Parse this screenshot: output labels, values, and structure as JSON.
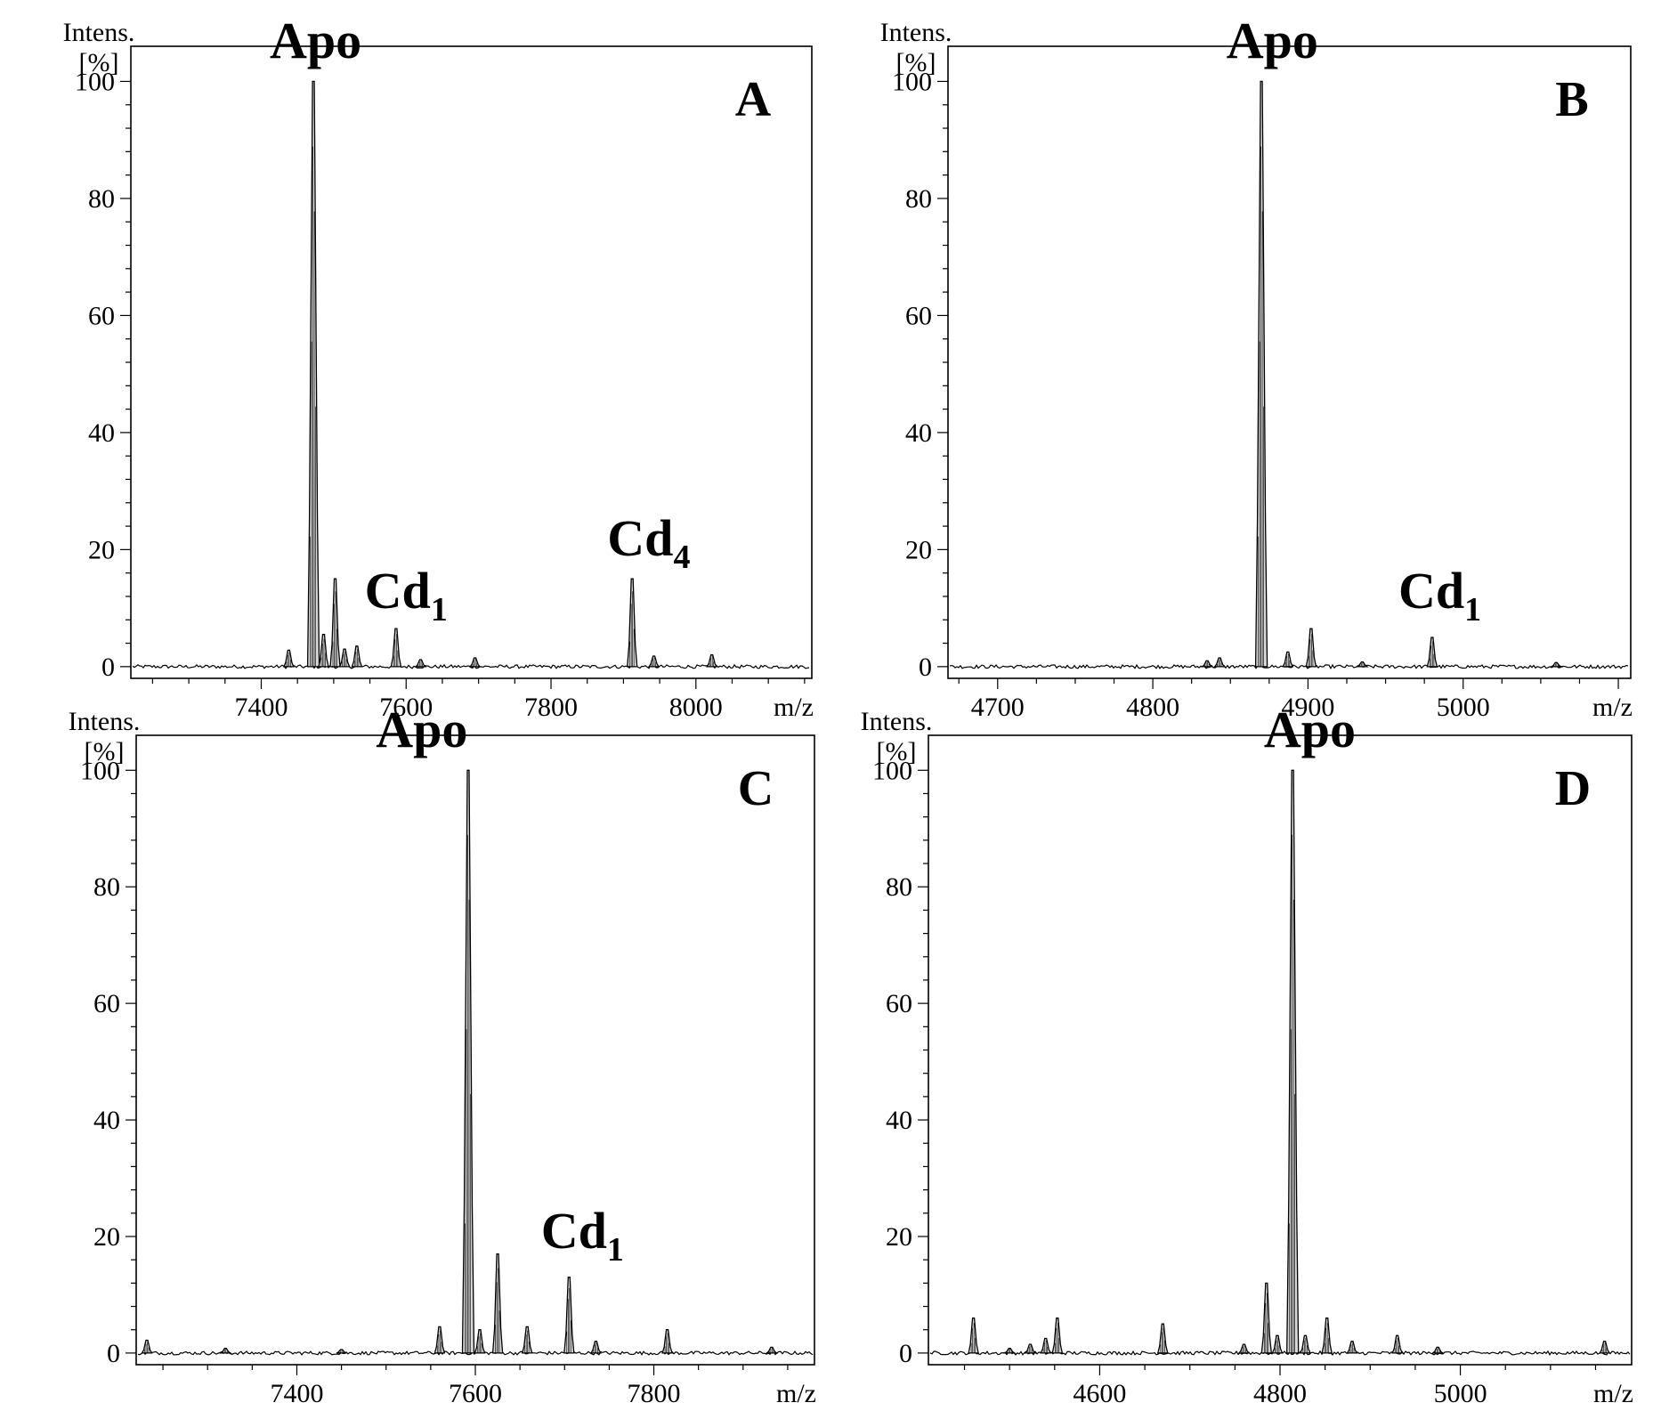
{
  "chart_data": [
    {
      "type": "line",
      "panel_label": "A",
      "ylabel": [
        "Intens.",
        "[%]"
      ],
      "xunit": "m/z",
      "xlim": [
        7220,
        8160
      ],
      "ylim": [
        -2,
        106
      ],
      "xticks": [
        7400,
        7600,
        7800,
        8000
      ],
      "yticks": [
        0,
        20,
        40,
        60,
        80,
        100
      ],
      "annotations": [
        {
          "text": "Apo",
          "sub": "",
          "x": 7475,
          "y": 104
        },
        {
          "text": "Cd",
          "sub": "1",
          "x": 7600,
          "y": 10
        },
        {
          "text": "Cd",
          "sub": "4",
          "x": 7935,
          "y": 19
        }
      ],
      "baseline": 0,
      "peaks": [
        {
          "x": 7438,
          "y": 2.8
        },
        {
          "x": 7472,
          "y": 100
        },
        {
          "x": 7486,
          "y": 5.5
        },
        {
          "x": 7502,
          "y": 15
        },
        {
          "x": 7515,
          "y": 3
        },
        {
          "x": 7532,
          "y": 3.5
        },
        {
          "x": 7586,
          "y": 6.5
        },
        {
          "x": 7620,
          "y": 1.2
        },
        {
          "x": 7695,
          "y": 1.5
        },
        {
          "x": 7912,
          "y": 15
        },
        {
          "x": 7942,
          "y": 1.8
        },
        {
          "x": 8022,
          "y": 2
        }
      ]
    },
    {
      "type": "line",
      "panel_label": "B",
      "ylabel": [
        "Intens.",
        "[%]"
      ],
      "xunit": "m/z",
      "xlim": [
        4668,
        5108
      ],
      "ylim": [
        -2,
        106
      ],
      "xticks": [
        4700,
        4800,
        4900,
        5000
      ],
      "yticks": [
        0,
        20,
        40,
        60,
        80,
        100
      ],
      "annotations": [
        {
          "text": "Apo",
          "sub": "",
          "x": 4877,
          "y": 104
        },
        {
          "text": "Cd",
          "sub": "1",
          "x": 4985,
          "y": 10
        }
      ],
      "baseline": 0,
      "peaks": [
        {
          "x": 4835,
          "y": 1
        },
        {
          "x": 4843,
          "y": 1.5
        },
        {
          "x": 4870,
          "y": 100
        },
        {
          "x": 4887,
          "y": 2.5
        },
        {
          "x": 4902,
          "y": 6.5
        },
        {
          "x": 4935,
          "y": 0.8
        },
        {
          "x": 4980,
          "y": 5
        },
        {
          "x": 5060,
          "y": 0.7
        }
      ]
    },
    {
      "type": "line",
      "panel_label": "C",
      "ylabel": [
        "Intens.",
        "[%]"
      ],
      "xunit": "m/z",
      "xlim": [
        7220,
        7980
      ],
      "ylim": [
        -2,
        106
      ],
      "xticks": [
        7400,
        7600,
        7800
      ],
      "yticks": [
        0,
        20,
        40,
        60,
        80,
        100
      ],
      "annotations": [
        {
          "text": "Apo",
          "sub": "",
          "x": 7540,
          "y": 104
        },
        {
          "text": "Cd",
          "sub": "1",
          "x": 7720,
          "y": 18
        }
      ],
      "baseline": 0,
      "peaks": [
        {
          "x": 7232,
          "y": 2.2
        },
        {
          "x": 7320,
          "y": 0.8
        },
        {
          "x": 7450,
          "y": 0.6
        },
        {
          "x": 7560,
          "y": 4.5
        },
        {
          "x": 7592,
          "y": 100
        },
        {
          "x": 7605,
          "y": 4
        },
        {
          "x": 7625,
          "y": 17
        },
        {
          "x": 7658,
          "y": 4.5
        },
        {
          "x": 7705,
          "y": 13
        },
        {
          "x": 7735,
          "y": 2
        },
        {
          "x": 7815,
          "y": 4
        },
        {
          "x": 7932,
          "y": 1
        }
      ]
    },
    {
      "type": "line",
      "panel_label": "D",
      "ylabel": [
        "Intens.",
        "[%]"
      ],
      "xunit": "m/z",
      "xlim": [
        4410,
        5190
      ],
      "ylim": [
        -2,
        106
      ],
      "xticks": [
        4600,
        4800,
        5000
      ],
      "yticks": [
        0,
        20,
        40,
        60,
        80,
        100
      ],
      "annotations": [
        {
          "text": "Apo",
          "sub": "",
          "x": 4833,
          "y": 104
        }
      ],
      "baseline": 0,
      "peaks": [
        {
          "x": 4460,
          "y": 6
        },
        {
          "x": 4500,
          "y": 0.8
        },
        {
          "x": 4523,
          "y": 1.5
        },
        {
          "x": 4540,
          "y": 2.5
        },
        {
          "x": 4553,
          "y": 6
        },
        {
          "x": 4670,
          "y": 5
        },
        {
          "x": 4760,
          "y": 1.5
        },
        {
          "x": 4785,
          "y": 12
        },
        {
          "x": 4797,
          "y": 3
        },
        {
          "x": 4814,
          "y": 100
        },
        {
          "x": 4828,
          "y": 3
        },
        {
          "x": 4852,
          "y": 6
        },
        {
          "x": 4880,
          "y": 2
        },
        {
          "x": 4930,
          "y": 3
        },
        {
          "x": 4975,
          "y": 1
        },
        {
          "x": 5160,
          "y": 2
        }
      ]
    }
  ]
}
